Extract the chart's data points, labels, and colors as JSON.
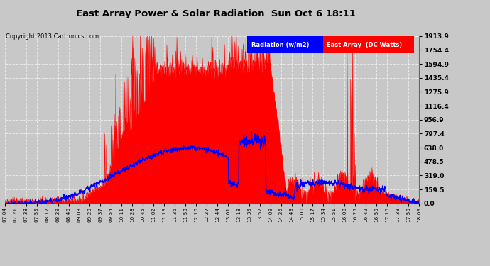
{
  "title": "East Array Power & Solar Radiation  Sun Oct 6 18:11",
  "copyright": "Copyright 2013 Cartronics.com",
  "legend_blue_label": "Radiation (w/m2)",
  "legend_red_label": "East Array  (DC Watts)",
  "yticks": [
    0.0,
    159.5,
    319.0,
    478.5,
    638.0,
    797.4,
    956.9,
    1116.4,
    1275.9,
    1435.4,
    1594.9,
    1754.4,
    1913.9
  ],
  "ymax": 1913.9,
  "ymin": 0.0,
  "bg_color": "#c8c8c8",
  "red_color": "#ff0000",
  "blue_color": "#0000ff",
  "xtick_labels": [
    "07:04",
    "07:21",
    "07:38",
    "07:55",
    "08:12",
    "08:29",
    "08:46",
    "09:03",
    "09:20",
    "09:37",
    "09:54",
    "10:11",
    "10:28",
    "10:45",
    "11:02",
    "11:19",
    "11:36",
    "11:53",
    "12:10",
    "12:27",
    "12:44",
    "13:01",
    "13:18",
    "13:35",
    "13:52",
    "14:09",
    "14:26",
    "14:43",
    "15:00",
    "15:17",
    "15:34",
    "15:51",
    "16:08",
    "16:25",
    "16:42",
    "16:59",
    "17:16",
    "17:33",
    "17:50",
    "18:09"
  ]
}
